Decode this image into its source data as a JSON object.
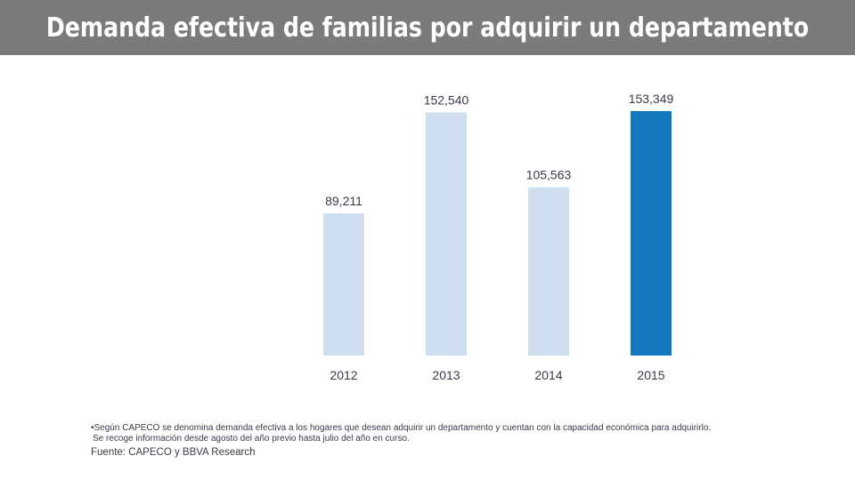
{
  "header": {
    "title": "Demanda efectiva de familias por adquirir un departamento"
  },
  "colors": {
    "header_bg": "#7b7b7b",
    "bar_light": "#cfdff0",
    "bar_highlight": "#1478be",
    "text": "#3a3a4a"
  },
  "chart_data": {
    "type": "bar",
    "categories": [
      "2012",
      "2013",
      "2014",
      "2015"
    ],
    "values": [
      89211,
      152540,
      105563,
      153349
    ],
    "value_labels": [
      "89,211",
      "152,540",
      "105,563",
      "153,349"
    ],
    "highlighted_category": "2015",
    "title": "",
    "xlabel": "",
    "ylabel": "",
    "ylim": [
      0,
      153349
    ],
    "grid": false,
    "legend": "none"
  },
  "notes": {
    "line1": "•Según CAPECO se denomina demanda efectiva a los hogares que desean adquirir un departamento y cuentan con la capacidad económica para adquirirlo.",
    "line2": "Se recoge información desde agosto del año previo hasta julio del año en curso.",
    "source": "Fuente:  CAPECO y BBVA Research"
  }
}
